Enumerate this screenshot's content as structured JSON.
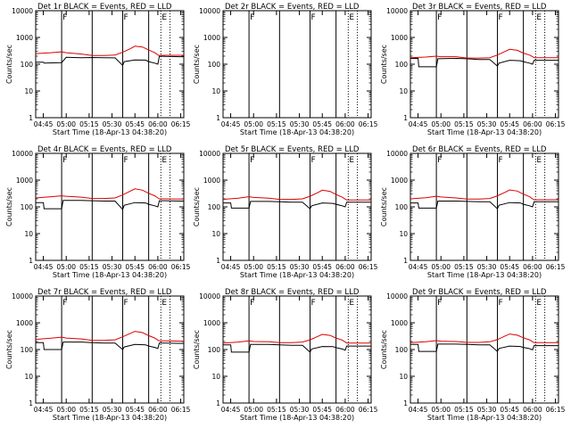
{
  "colors": {
    "events": "#000000",
    "lld": "#dd0000",
    "axes": "#000000",
    "background": "#ffffff"
  },
  "chart_data": {
    "type": "line",
    "xlabel": "Start Time (18-Apr-13 04:38:20)",
    "ylabel": "Counts/sec",
    "ylim": [
      1,
      10000
    ],
    "xticks": [
      "04:45",
      "05:00",
      "05:15",
      "05:30",
      "05:45",
      "06:00",
      "06:15"
    ],
    "xtick_minutes": [
      285,
      300,
      315,
      330,
      345,
      360,
      375
    ],
    "xrange_minutes": [
      280,
      377
    ],
    "event_lines_solid": [
      297,
      317,
      337,
      354
    ],
    "event_lines_dotted": [
      362,
      368
    ],
    "markers": [
      {
        "label": "F",
        "minute": 297
      },
      {
        "label": "F",
        "minute": 337
      },
      {
        "label": "E",
        "minute": 362
      }
    ],
    "panels": [
      {
        "title": "Det 1r  BLACK = Events, RED = LLD",
        "ytick_labels": [
          "1",
          "10",
          "100",
          "1000",
          "10000"
        ],
        "has_data": true,
        "series": [
          {
            "name": "Events",
            "x": [
              280,
              285,
              285.5,
              297,
              300,
              310,
              317,
              325,
              332,
              337,
              338,
              345,
              352,
              354,
              358,
              360,
              361,
              365,
              375,
              377
            ],
            "y": [
              118,
              118,
              110,
              115,
              180,
              175,
              178,
              175,
              172,
              90,
              125,
              145,
              142,
              125,
              110,
              100,
              200,
              195,
              190,
              190
            ]
          },
          {
            "name": "LLD",
            "x": [
              280,
              290,
              297,
              300,
              310,
              317,
              325,
              332,
              337,
              342,
              345,
              350,
              354,
              358,
              360,
              361,
              365,
              375,
              377
            ],
            "y": [
              250,
              270,
              290,
              270,
              240,
              210,
              210,
              220,
              280,
              380,
              470,
              440,
              340,
              270,
              220,
              210,
              215,
              215,
              215
            ]
          }
        ]
      },
      {
        "title": "Det 2r  BLACK = Events, RED = LLD",
        "ytick_labels": [
          "1",
          "10",
          "100",
          "1000",
          "10000"
        ],
        "has_data": false,
        "series": []
      },
      {
        "title": "Det 3r  BLACK = Events, RED = LLD",
        "ytick_labels": [
          "1",
          "10",
          "100",
          "1000",
          "10000"
        ],
        "has_data": true,
        "series": [
          {
            "name": "Events",
            "x": [
              280,
              285,
              285.5,
              297,
              298,
              310,
              317,
              325,
              332,
              337,
              338,
              345,
              352,
              354,
              358,
              360,
              361,
              365,
              375,
              377
            ],
            "y": [
              165,
              165,
              80,
              80,
              160,
              165,
              160,
              150,
              150,
              85,
              110,
              140,
              135,
              125,
              110,
              100,
              140,
              140,
              140,
              140
            ]
          },
          {
            "name": "LLD",
            "x": [
              280,
              290,
              297,
              300,
              310,
              317,
              325,
              332,
              337,
              342,
              345,
              350,
              354,
              358,
              360,
              361,
              365,
              375,
              377
            ],
            "y": [
              175,
              185,
              200,
              190,
              190,
              170,
              170,
              175,
              220,
              300,
              360,
              330,
              260,
              220,
              190,
              175,
              175,
              175,
              175
            ]
          }
        ]
      },
      {
        "title": "Det 4r  BLACK = Events, RED = LLD",
        "ytick_labels": [
          "1",
          "10",
          "100",
          "1000",
          "10000"
        ],
        "has_data": true,
        "series": [
          {
            "name": "Events",
            "x": [
              280,
              285,
              285.5,
              297,
              298,
              310,
              317,
              325,
              332,
              337,
              338,
              345,
              352,
              354,
              358,
              360,
              361,
              365,
              375,
              377
            ],
            "y": [
              145,
              145,
              85,
              85,
              175,
              175,
              170,
              165,
              165,
              80,
              115,
              145,
              140,
              125,
              110,
              100,
              170,
              170,
              165,
              165
            ]
          },
          {
            "name": "LLD",
            "x": [
              280,
              290,
              297,
              300,
              310,
              317,
              325,
              332,
              337,
              342,
              345,
              350,
              354,
              358,
              360,
              361,
              365,
              375,
              377
            ],
            "y": [
              215,
              240,
              260,
              250,
              230,
              205,
              205,
              215,
              280,
              390,
              470,
              420,
              320,
              260,
              215,
              200,
              200,
              195,
              195
            ]
          }
        ]
      },
      {
        "title": "Det 5r  BLACK = Events, RED = LLD",
        "ytick_labels": [
          "1",
          "10",
          "100",
          "1000",
          "10000"
        ],
        "has_data": true,
        "series": [
          {
            "name": "Events",
            "x": [
              280,
              285,
              285.5,
              297,
              298,
              310,
              317,
              325,
              332,
              337,
              338,
              345,
              352,
              354,
              358,
              360,
              361,
              365,
              375,
              377
            ],
            "y": [
              140,
              140,
              90,
              90,
              160,
              160,
              155,
              150,
              150,
              85,
              110,
              140,
              135,
              125,
              110,
              100,
              150,
              150,
              150,
              150
            ]
          },
          {
            "name": "LLD",
            "x": [
              280,
              290,
              297,
              300,
              310,
              317,
              325,
              332,
              337,
              342,
              345,
              350,
              354,
              358,
              360,
              361,
              365,
              375,
              377
            ],
            "y": [
              190,
              210,
              240,
              225,
              210,
              190,
              190,
              200,
              250,
              340,
              420,
              380,
              290,
              230,
              195,
              180,
              180,
              180,
              180
            ]
          }
        ]
      },
      {
        "title": "Det 6r  BLACK = Events, RED = LLD",
        "ytick_labels": [
          "1",
          "10",
          "100",
          "1000",
          "10000"
        ],
        "has_data": true,
        "series": [
          {
            "name": "Events",
            "x": [
              280,
              285,
              285.5,
              297,
              298,
              310,
              317,
              325,
              332,
              337,
              338,
              345,
              352,
              354,
              358,
              360,
              361,
              365,
              375,
              377
            ],
            "y": [
              140,
              140,
              90,
              90,
              165,
              165,
              160,
              155,
              155,
              85,
              115,
              145,
              140,
              125,
              110,
              100,
              155,
              155,
              155,
              155
            ]
          },
          {
            "name": "LLD",
            "x": [
              280,
              290,
              297,
              300,
              310,
              317,
              325,
              332,
              337,
              342,
              345,
              350,
              354,
              358,
              360,
              361,
              365,
              375,
              377
            ],
            "y": [
              200,
              220,
              250,
              235,
              215,
              195,
              195,
              205,
              260,
              350,
              430,
              390,
              300,
              240,
              200,
              185,
              185,
              185,
              185
            ]
          }
        ]
      },
      {
        "title": "Det 7r  BLACK = Events, RED = LLD",
        "ytick_labels": [
          "1",
          "10",
          "100",
          "1000",
          "10000"
        ],
        "has_data": true,
        "series": [
          {
            "name": "Events",
            "x": [
              280,
              285,
              285.5,
              297,
              298,
              310,
              317,
              325,
              332,
              337,
              338,
              345,
              352,
              354,
              358,
              360,
              361,
              365,
              375,
              377
            ],
            "y": [
              180,
              180,
              100,
              100,
              190,
              190,
              180,
              175,
              175,
              100,
              125,
              155,
              150,
              135,
              120,
              110,
              175,
              175,
              170,
              170
            ]
          },
          {
            "name": "LLD",
            "x": [
              280,
              290,
              297,
              300,
              310,
              317,
              325,
              332,
              337,
              342,
              345,
              350,
              354,
              358,
              360,
              361,
              365,
              375,
              377
            ],
            "y": [
              240,
              265,
              290,
              270,
              250,
              220,
              220,
              230,
              300,
              400,
              480,
              430,
              330,
              270,
              225,
              210,
              210,
              205,
              205
            ]
          }
        ]
      },
      {
        "title": "Det 8r  BLACK = Events, RED = LLD",
        "ytick_labels": [
          "1",
          "10",
          "100",
          "1000",
          "10000"
        ],
        "has_data": true,
        "series": [
          {
            "name": "Events",
            "x": [
              280,
              285,
              285.5,
              297,
              298,
              310,
              317,
              325,
              332,
              337,
              338,
              345,
              352,
              354,
              358,
              360,
              361,
              365,
              375,
              377
            ],
            "y": [
              150,
              150,
              80,
              80,
              155,
              155,
              150,
              145,
              145,
              80,
              105,
              130,
              128,
              118,
              105,
              95,
              135,
              135,
              135,
              135
            ]
          },
          {
            "name": "LLD",
            "x": [
              280,
              290,
              297,
              300,
              310,
              317,
              325,
              332,
              337,
              342,
              345,
              350,
              354,
              358,
              360,
              361,
              365,
              375,
              377
            ],
            "y": [
              175,
              190,
              210,
              200,
              195,
              180,
              180,
              190,
              230,
              310,
              370,
              340,
              270,
              225,
              190,
              175,
              175,
              175,
              175
            ]
          }
        ]
      },
      {
        "title": "Det 9r  BLACK = Events, RED = LLD",
        "ytick_labels": [
          "1",
          "10",
          "100",
          "1000",
          "10000"
        ],
        "has_data": true,
        "series": [
          {
            "name": "Events",
            "x": [
              280,
              285,
              285.5,
              297,
              298,
              310,
              317,
              325,
              332,
              337,
              338,
              345,
              352,
              354,
              358,
              360,
              361,
              365,
              375,
              377
            ],
            "y": [
              155,
              155,
              85,
              85,
              160,
              160,
              155,
              150,
              150,
              85,
              110,
              135,
              130,
              120,
              108,
              98,
              140,
              140,
              140,
              140
            ]
          },
          {
            "name": "LLD",
            "x": [
              280,
              290,
              297,
              300,
              310,
              317,
              325,
              332,
              337,
              342,
              345,
              350,
              354,
              358,
              360,
              361,
              365,
              375,
              377
            ],
            "y": [
              180,
              195,
              215,
              205,
              200,
              185,
              185,
              195,
              235,
              320,
              380,
              345,
              275,
              230,
              195,
              180,
              180,
              180,
              180
            ]
          }
        ]
      }
    ]
  }
}
